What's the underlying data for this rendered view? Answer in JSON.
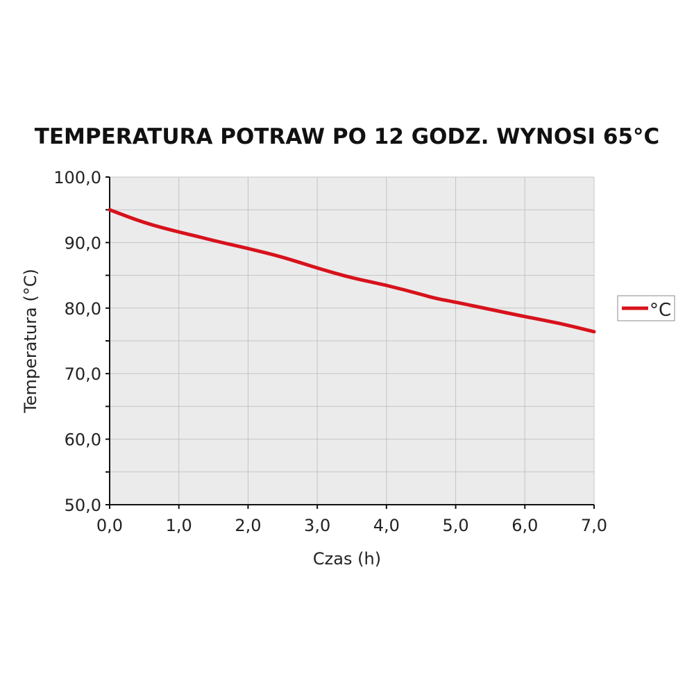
{
  "chart_data": {
    "type": "line",
    "title": "TEMPERATURA POTRAW PO 12 GODZ. WYNOSI 65°C",
    "xlabel": "Czas (h)",
    "ylabel": "Temperatura (°C)",
    "xlim": [
      0,
      7
    ],
    "ylim": [
      50,
      100
    ],
    "xticks": [
      "0,0",
      "1,0",
      "2,0",
      "3,0",
      "4,0",
      "5,0",
      "6,0",
      "7,0"
    ],
    "yticks": [
      "50,0",
      "60,0",
      "70,0",
      "80,0",
      "90,0",
      "100,0"
    ],
    "grid": true,
    "legend": "right",
    "series": [
      {
        "name": "°C",
        "color": "#d7121c",
        "x": [
          0,
          0.5,
          1.0,
          1.25,
          1.5,
          2.0,
          2.5,
          3.0,
          3.5,
          4.0,
          4.5,
          4.7,
          5.0,
          5.5,
          6.0,
          6.5,
          7.0
        ],
        "y": [
          95.0,
          93.0,
          91.6,
          91.0,
          90.3,
          89.1,
          87.8,
          86.1,
          84.6,
          83.5,
          82.1,
          81.5,
          80.9,
          79.8,
          78.7,
          77.7,
          76.4
        ]
      }
    ]
  }
}
